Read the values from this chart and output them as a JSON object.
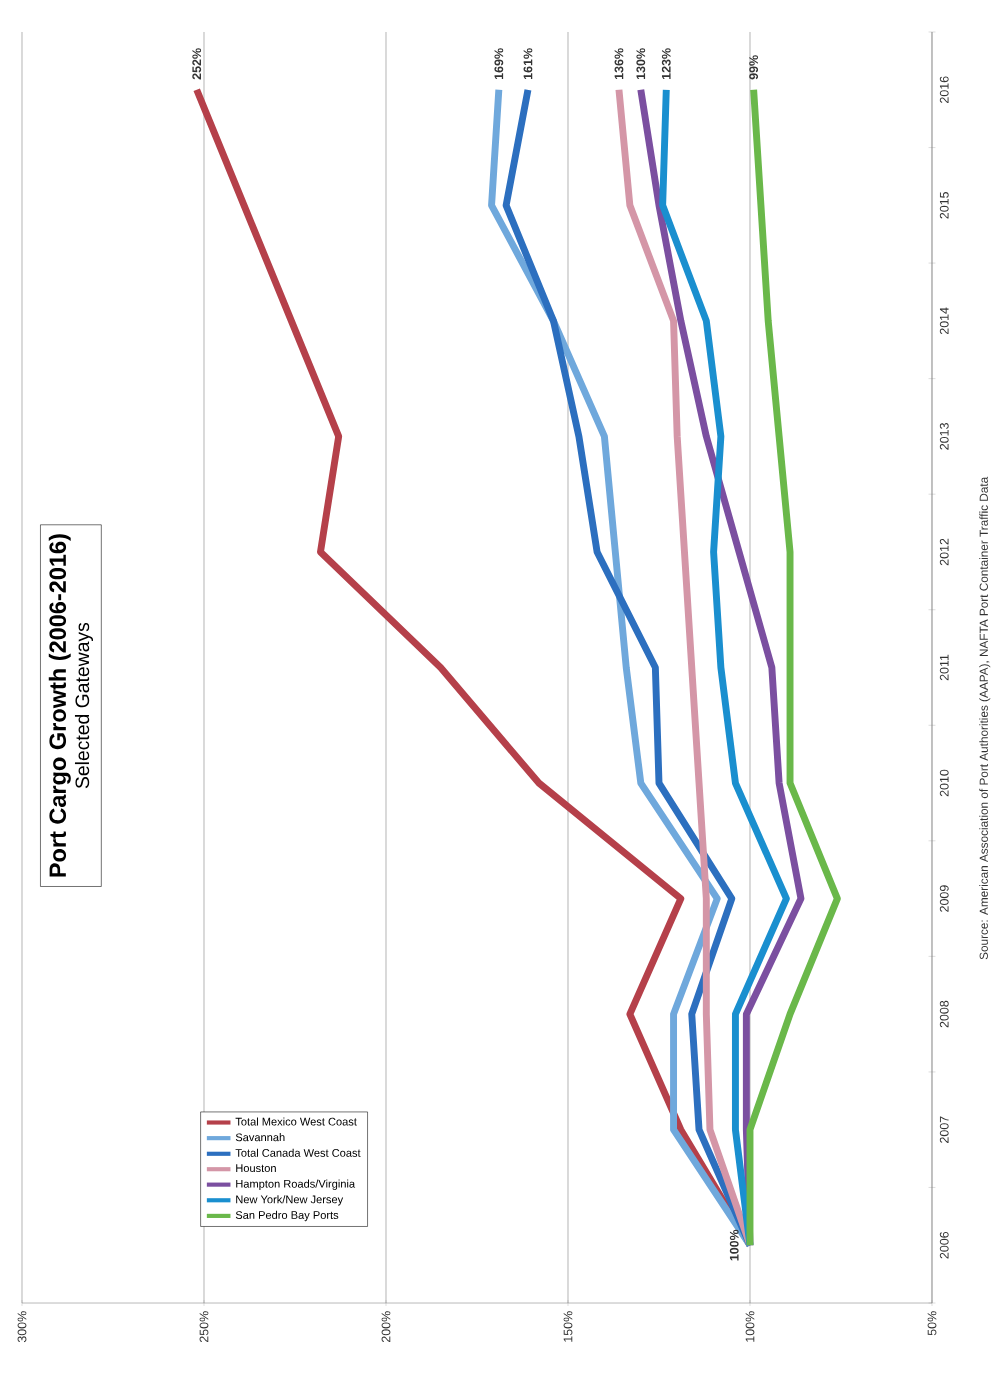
{
  "chart_data": {
    "type": "line",
    "title": "Port Cargo Growth (2006-2016)",
    "subtitle": "Selected Gateways",
    "orientation": "horizontal",
    "categories": [
      "2016",
      "2015",
      "2014",
      "2013",
      "2012",
      "2011",
      "2010",
      "2009",
      "2008",
      "2007",
      "2006"
    ],
    "xlim": [
      300,
      50
    ],
    "xticks": [
      {
        "value": 300,
        "label": "300%"
      },
      {
        "value": 250,
        "label": "250%"
      },
      {
        "value": 200,
        "label": "200%"
      },
      {
        "value": 150,
        "label": "150%"
      },
      {
        "value": 100,
        "label": "100%"
      },
      {
        "value": 50,
        "label": "50%"
      }
    ],
    "grid": "x",
    "legend": "bottom left",
    "series": [
      {
        "name": "Total Mexico West Coast",
        "color": "#b5404a",
        "values": [
          252,
          239,
          226,
          213,
          218,
          185,
          158,
          119,
          133,
          119,
          100
        ]
      },
      {
        "name": "Savannah",
        "color": "#6fa8dc",
        "values": [
          169,
          171,
          154,
          140,
          137,
          134,
          130,
          109,
          121,
          121,
          100
        ]
      },
      {
        "name": "Total Canada West Coast",
        "color": "#2c6fbf",
        "values": [
          161,
          167,
          154,
          147,
          142,
          126,
          125,
          105,
          116,
          114,
          100
        ]
      },
      {
        "name": "Houston",
        "color": "#d496a7",
        "values": [
          136,
          133,
          121,
          120,
          118,
          116,
          114,
          112,
          112,
          111,
          100
        ]
      },
      {
        "name": "Hampton Roads/Virginia",
        "color": "#7b4fa0",
        "values": [
          130,
          125,
          119,
          112,
          103,
          94,
          92,
          86,
          101,
          101,
          100
        ]
      },
      {
        "name": "New York/New Jersey",
        "color": "#1a8fcf",
        "values": [
          123,
          124,
          112,
          108,
          110,
          108,
          104,
          90,
          104,
          104,
          100
        ]
      },
      {
        "name": "San Pedro Bay Ports",
        "color": "#6ab84a",
        "values": [
          99,
          97,
          95,
          92,
          89,
          89,
          89,
          76,
          89,
          100,
          100
        ]
      }
    ],
    "annotations": [
      {
        "text": "252%",
        "x": 252,
        "y": "2016"
      },
      {
        "text": "169%",
        "x": 169,
        "y": "2016"
      },
      {
        "text": "161%",
        "x": 161,
        "y": "2016"
      },
      {
        "text": "136%",
        "x": 136,
        "y": "2016"
      },
      {
        "text": "130%",
        "x": 130,
        "y": "2016"
      },
      {
        "text": "123%",
        "x": 123,
        "y": "2016"
      },
      {
        "text": "99%",
        "x": 99,
        "y": "2016"
      },
      {
        "text": "100%",
        "x": 100,
        "y": "2006"
      },
      "Source:  American Association of Port Authorities (AAPA),  NAFTA Port Container Traffic Data"
    ]
  }
}
